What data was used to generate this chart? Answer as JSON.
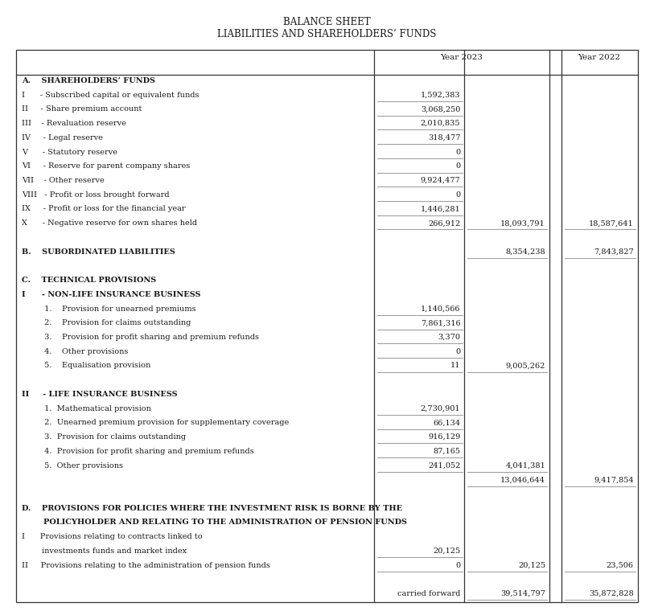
{
  "title1": "BALANCE SHEET",
  "title2": "LIABILITIES AND SHAREHOLDERS’ FUNDS",
  "rows": [
    {
      "label": "A.    SHAREHOLDERS’ FUNDS",
      "bold": true,
      "c1": "",
      "c2": "",
      "c3": "",
      "c1ul": false,
      "c2ul": false,
      "c3ul": false
    },
    {
      "label": "I      - Subscribed capital or equivalent funds",
      "bold": false,
      "c1": "1,592,383",
      "c2": "",
      "c3": "",
      "c1ul": true,
      "c2ul": false,
      "c3ul": false
    },
    {
      "label": "II     - Share premium account",
      "bold": false,
      "c1": "3,068,250",
      "c2": "",
      "c3": "",
      "c1ul": true,
      "c2ul": false,
      "c3ul": false
    },
    {
      "label": "III    - Revaluation reserve",
      "bold": false,
      "c1": "2,010,835",
      "c2": "",
      "c3": "",
      "c1ul": true,
      "c2ul": false,
      "c3ul": false
    },
    {
      "label": "IV     - Legal reserve",
      "bold": false,
      "c1": "318,477",
      "c2": "",
      "c3": "",
      "c1ul": true,
      "c2ul": false,
      "c3ul": false
    },
    {
      "label": "V      - Statutory reserve",
      "bold": false,
      "c1": "0",
      "c2": "",
      "c3": "",
      "c1ul": true,
      "c2ul": false,
      "c3ul": false
    },
    {
      "label": "VI     - Reserve for parent company shares",
      "bold": false,
      "c1": "0",
      "c2": "",
      "c3": "",
      "c1ul": true,
      "c2ul": false,
      "c3ul": false
    },
    {
      "label": "VII    - Other reserve",
      "bold": false,
      "c1": "9,924,477",
      "c2": "",
      "c3": "",
      "c1ul": true,
      "c2ul": false,
      "c3ul": false
    },
    {
      "label": "VIII   - Profit or loss brought forward",
      "bold": false,
      "c1": "0",
      "c2": "",
      "c3": "",
      "c1ul": true,
      "c2ul": false,
      "c3ul": false
    },
    {
      "label": "IX     - Profit or loss for the financial year",
      "bold": false,
      "c1": "1,446,281",
      "c2": "",
      "c3": "",
      "c1ul": true,
      "c2ul": false,
      "c3ul": false
    },
    {
      "label": "X      - Negative reserve for own shares held",
      "bold": false,
      "c1": "266,912",
      "c2": "18,093,791",
      "c3": "18,587,641",
      "c1ul": true,
      "c2ul": true,
      "c3ul": true
    },
    {
      "label": "",
      "bold": false,
      "c1": "",
      "c2": "",
      "c3": "",
      "c1ul": false,
      "c2ul": false,
      "c3ul": false
    },
    {
      "label": "B.    SUBORDINATED LIABILITIES",
      "bold": true,
      "c1": "",
      "c2": "8,354,238",
      "c3": "7,843,827",
      "c1ul": false,
      "c2ul": true,
      "c3ul": true
    },
    {
      "label": "",
      "bold": false,
      "c1": "",
      "c2": "",
      "c3": "",
      "c1ul": false,
      "c2ul": false,
      "c3ul": false
    },
    {
      "label": "C.    TECHNICAL PROVISIONS",
      "bold": true,
      "c1": "",
      "c2": "",
      "c3": "",
      "c1ul": false,
      "c2ul": false,
      "c3ul": false
    },
    {
      "label": "I      - NON-LIFE INSURANCE BUSINESS",
      "bold": true,
      "c1": "",
      "c2": "",
      "c3": "",
      "c1ul": false,
      "c2ul": false,
      "c3ul": false
    },
    {
      "label": "         1.    Provision for unearned premiums",
      "bold": false,
      "c1": "1,140,566",
      "c2": "",
      "c3": "",
      "c1ul": true,
      "c2ul": false,
      "c3ul": false
    },
    {
      "label": "         2.    Provision for claims outstanding",
      "bold": false,
      "c1": "7,861,316",
      "c2": "",
      "c3": "",
      "c1ul": true,
      "c2ul": false,
      "c3ul": false
    },
    {
      "label": "         3.    Provision for profit sharing and premium refunds",
      "bold": false,
      "c1": "3,370",
      "c2": "",
      "c3": "",
      "c1ul": true,
      "c2ul": false,
      "c3ul": false
    },
    {
      "label": "         4.    Other provisions",
      "bold": false,
      "c1": "0",
      "c2": "",
      "c3": "",
      "c1ul": true,
      "c2ul": false,
      "c3ul": false
    },
    {
      "label": "         5.    Equalisation provision",
      "bold": false,
      "c1": "11",
      "c2": "9,005,262",
      "c3": "",
      "c1ul": true,
      "c2ul": true,
      "c3ul": false
    },
    {
      "label": "",
      "bold": false,
      "c1": "",
      "c2": "",
      "c3": "",
      "c1ul": false,
      "c2ul": false,
      "c3ul": false
    },
    {
      "label": "II     - LIFE INSURANCE BUSINESS",
      "bold": true,
      "c1": "",
      "c2": "",
      "c3": "",
      "c1ul": false,
      "c2ul": false,
      "c3ul": false
    },
    {
      "label": "         1.  Mathematical provision",
      "bold": false,
      "c1": "2,730,901",
      "c2": "",
      "c3": "",
      "c1ul": true,
      "c2ul": false,
      "c3ul": false
    },
    {
      "label": "         2.  Unearned premium provision for supplementary coverage",
      "bold": false,
      "c1": "66,134",
      "c2": "",
      "c3": "",
      "c1ul": true,
      "c2ul": false,
      "c3ul": false
    },
    {
      "label": "         3.  Provision for claims outstanding",
      "bold": false,
      "c1": "916,129",
      "c2": "",
      "c3": "",
      "c1ul": true,
      "c2ul": false,
      "c3ul": false
    },
    {
      "label": "         4.  Provision for profit sharing and premium refunds",
      "bold": false,
      "c1": "87,165",
      "c2": "",
      "c3": "",
      "c1ul": true,
      "c2ul": false,
      "c3ul": false
    },
    {
      "label": "         5.  Other provisions",
      "bold": false,
      "c1": "241,052",
      "c2": "4,041,381",
      "c3": "",
      "c1ul": true,
      "c2ul": true,
      "c3ul": false
    },
    {
      "label": "",
      "bold": false,
      "c1": "",
      "c2": "13,046,644",
      "c3": "9,417,854",
      "c1ul": false,
      "c2ul": true,
      "c3ul": true
    },
    {
      "label": "",
      "bold": false,
      "c1": "",
      "c2": "",
      "c3": "",
      "c1ul": false,
      "c2ul": false,
      "c3ul": false
    },
    {
      "label": "D.    PROVISIONS FOR POLICIES WHERE THE INVESTMENT RISK IS BORNE BY THE",
      "bold": true,
      "c1": "",
      "c2": "",
      "c3": "",
      "c1ul": false,
      "c2ul": false,
      "c3ul": false
    },
    {
      "label": "        POLICYHOLDER AND RELATING TO THE ADMINISTRATION OF PENSION FUNDS",
      "bold": true,
      "c1": "",
      "c2": "",
      "c3": "",
      "c1ul": false,
      "c2ul": false,
      "c3ul": false
    },
    {
      "label": "I      Provisions relating to contracts linked to",
      "bold": false,
      "c1": "",
      "c2": "",
      "c3": "",
      "c1ul": false,
      "c2ul": false,
      "c3ul": false
    },
    {
      "label": "        investments funds and market index",
      "bold": false,
      "c1": "20,125",
      "c2": "",
      "c3": "",
      "c1ul": true,
      "c2ul": false,
      "c3ul": false
    },
    {
      "label": "II     Provisions relating to the administration of pension funds",
      "bold": false,
      "c1": "0",
      "c2": "20,125",
      "c3": "23,506",
      "c1ul": true,
      "c2ul": true,
      "c3ul": true
    },
    {
      "label": "",
      "bold": false,
      "c1": "",
      "c2": "",
      "c3": "",
      "c1ul": false,
      "c2ul": false,
      "c3ul": false
    },
    {
      "label": "",
      "bold": false,
      "c1": "carried forward",
      "c2": "39,514,797",
      "c3": "35,872,828",
      "c1ul": false,
      "c2ul": true,
      "c3ul": true,
      "cf_label": true
    }
  ],
  "bg_color": "#ffffff",
  "text_color": "#1a1a1a",
  "border_color": "#333333",
  "ul_color": "#888888"
}
